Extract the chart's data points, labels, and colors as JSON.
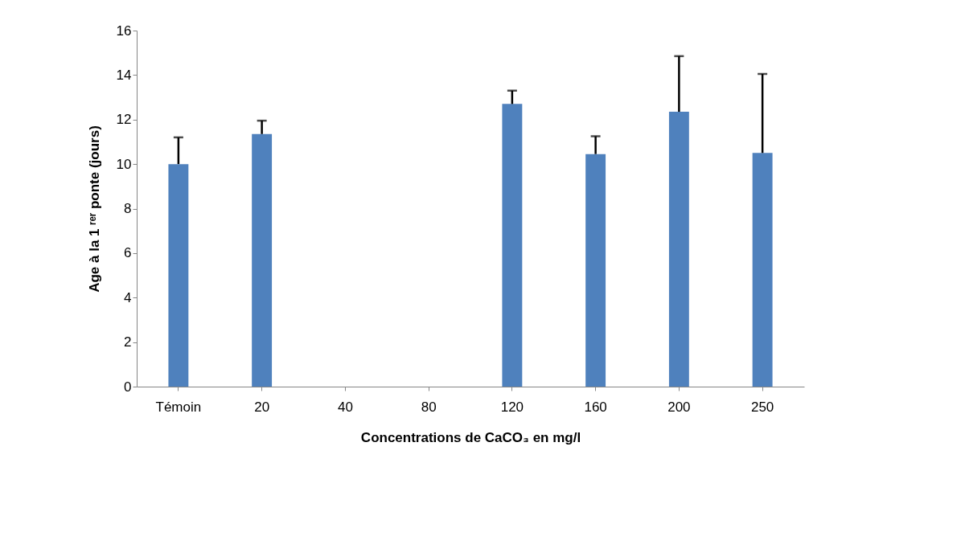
{
  "chart_data": {
    "type": "bar",
    "xlabel": "Concentrations de CaCO₃ en mg/l",
    "ylabel": "Age à la 1 ʳᵉʳ ponte (jours)",
    "categories": [
      "Témoin",
      "20",
      "40",
      "80",
      "120",
      "160",
      "200",
      "250"
    ],
    "values": [
      10.0,
      11.35,
      null,
      null,
      12.7,
      10.45,
      12.35,
      10.5
    ],
    "errors": [
      1.2,
      0.6,
      null,
      null,
      0.6,
      0.8,
      2.5,
      3.55
    ],
    "color": "#4f81bd",
    "ylim": [
      0,
      16
    ],
    "yticks": [
      0,
      2,
      4,
      6,
      8,
      10,
      12,
      14,
      16
    ],
    "grid": false
  }
}
